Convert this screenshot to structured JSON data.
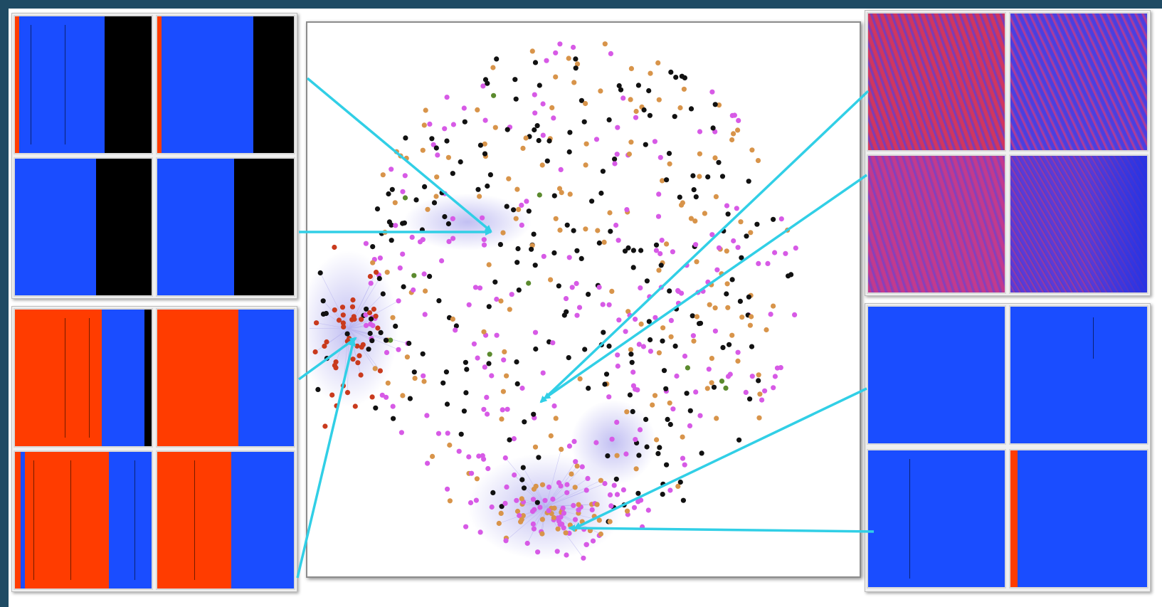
{
  "colors": {
    "frame": "#1f4b64",
    "blue": "#1a4dff",
    "black": "#000000",
    "red": "#ff3c00",
    "arrow": "#31cfe6",
    "node_black": "#111111",
    "node_magenta": "#d75ae6",
    "node_orange": "#d8944a",
    "node_red": "#c93a1d",
    "node_green": "#5b8a2e",
    "cluster_glow": "#b7b4f0"
  },
  "icons": {
    "arrow": "arrow-icon"
  },
  "groups": [
    {
      "name": "blue-black",
      "tiles": [
        "blue-black-tile",
        "blue-black-tile",
        "blue-black-tile",
        "blue-black-tile"
      ]
    },
    {
      "name": "red-blue",
      "tiles": [
        "red-blue-tile",
        "red-blue-tile",
        "red-blue-tile",
        "red-blue-tile"
      ]
    },
    {
      "name": "red-blue-textured",
      "tiles": [
        "textured-tile",
        "textured-tile",
        "textured-tile",
        "textured-tile"
      ]
    },
    {
      "name": "solid-blue",
      "tiles": [
        "blue-tile",
        "blue-tile",
        "blue-tile",
        "blue-tile"
      ]
    }
  ]
}
